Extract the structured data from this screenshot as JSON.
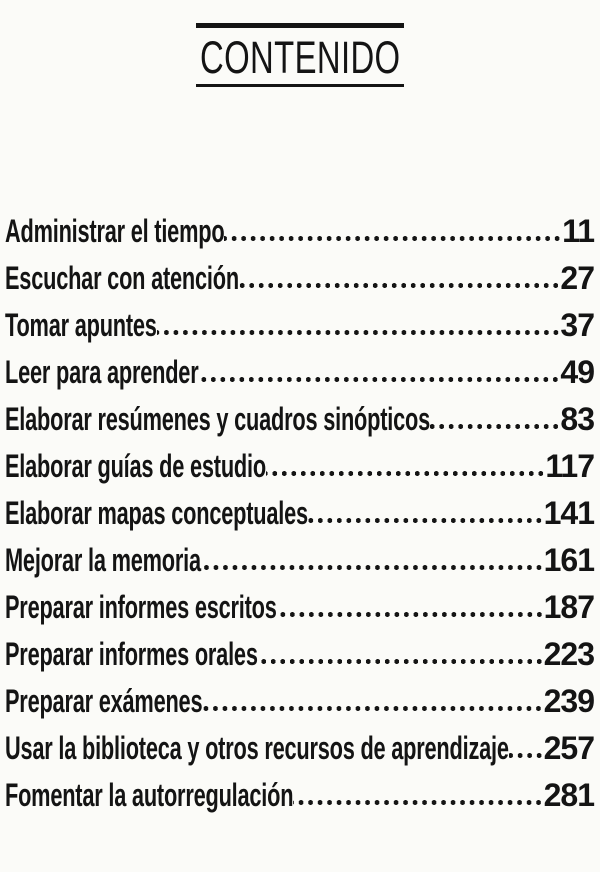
{
  "page": {
    "title": "CONTENIDO",
    "ink_color": "#141414",
    "paper_color": "#fbfbf8"
  },
  "toc": {
    "items": [
      {
        "title": "Administrar el tiempo",
        "page": "11"
      },
      {
        "title": "Escuchar con atención",
        "page": "27"
      },
      {
        "title": "Tomar apuntes",
        "page": "37"
      },
      {
        "title": "Leer para aprender",
        "page": "49"
      },
      {
        "title": "Elaborar resúmenes y cuadros sinópticos",
        "page": "83"
      },
      {
        "title": "Elaborar guías de estudio",
        "page": "117"
      },
      {
        "title": "Elaborar mapas conceptuales",
        "page": "141"
      },
      {
        "title": "Mejorar la memoria",
        "page": "161"
      },
      {
        "title": "Preparar informes escritos",
        "page": "187"
      },
      {
        "title": "Preparar informes orales",
        "page": "223"
      },
      {
        "title": "Preparar exámenes",
        "page": "239"
      },
      {
        "title": "Usar la biblioteca y otros recursos de aprendizaje",
        "page": "257"
      },
      {
        "title": "Fomentar la autorregulación",
        "page": "281"
      }
    ]
  }
}
